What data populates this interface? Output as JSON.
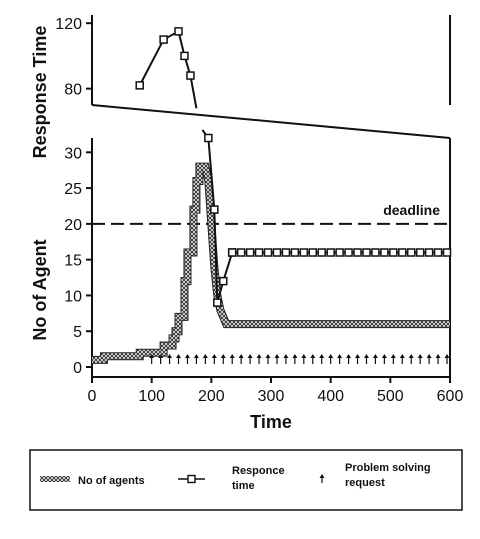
{
  "chart_data": {
    "type": "line",
    "title": "",
    "xlabel": "Time",
    "ylabel_top": "Response Time",
    "ylabel_bottom": "No of Agent",
    "xlim": [
      0,
      600
    ],
    "x_ticks": [
      0,
      100,
      200,
      300,
      400,
      500,
      600
    ],
    "top_panel": {
      "ylim": [
        70,
        125
      ],
      "y_ticks": [
        80,
        120
      ],
      "response_time_points": [
        [
          80,
          82
        ],
        [
          120,
          110
        ],
        [
          145,
          115
        ],
        [
          155,
          100
        ],
        [
          165,
          88
        ]
      ],
      "line_to": [
        175,
        68
      ]
    },
    "bottom_panel": {
      "ylim": [
        0,
        32
      ],
      "y_ticks": [
        0,
        5,
        10,
        15,
        20,
        25,
        30
      ],
      "deadline": {
        "label": "deadline",
        "value": 20
      },
      "no_of_agents": [
        [
          0,
          1
        ],
        [
          20,
          1
        ],
        [
          20,
          1.5
        ],
        [
          80,
          1.5
        ],
        [
          80,
          2
        ],
        [
          120,
          2
        ],
        [
          120,
          3
        ],
        [
          135,
          3
        ],
        [
          135,
          4
        ],
        [
          140,
          4
        ],
        [
          140,
          5
        ],
        [
          145,
          5
        ],
        [
          145,
          7
        ],
        [
          155,
          7
        ],
        [
          155,
          12
        ],
        [
          160,
          12
        ],
        [
          160,
          16
        ],
        [
          170,
          16
        ],
        [
          170,
          22
        ],
        [
          175,
          22
        ],
        [
          175,
          26
        ],
        [
          180,
          26
        ],
        [
          180,
          28
        ],
        [
          190,
          28
        ],
        [
          195,
          26
        ],
        [
          200,
          20
        ],
        [
          205,
          14
        ],
        [
          210,
          10
        ],
        [
          215,
          8
        ],
        [
          220,
          7
        ],
        [
          225,
          6
        ],
        [
          600,
          6
        ]
      ],
      "response_time_points": [
        [
          195,
          32
        ],
        [
          205,
          22
        ],
        [
          210,
          9
        ],
        [
          220,
          12
        ],
        [
          235,
          16
        ]
      ],
      "response_time_line": [
        [
          185,
          37
        ],
        [
          195,
          32
        ],
        [
          205,
          22
        ],
        [
          210,
          9
        ],
        [
          220,
          12
        ],
        [
          235,
          16
        ]
      ],
      "response_time_steady": {
        "x_start": 235,
        "x_end": 600,
        "step": 15,
        "value": 16
      },
      "problem_solving_requests": {
        "x_start": 100,
        "x_end": 595,
        "step": 15
      }
    },
    "legend": [
      {
        "marker": "hatched",
        "label": "No of agents"
      },
      {
        "marker": "square-line",
        "label": "Responce time"
      },
      {
        "marker": "arrow",
        "label": "Problem solving request"
      }
    ]
  },
  "labels": {
    "xlabel": "Time",
    "ylabel_top": "Response Time",
    "ylabel_bottom": "No of Agent",
    "deadline": "deadline",
    "legend_agents": "No of agents",
    "legend_resp_line1": "Responce",
    "legend_resp_line2": "time",
    "legend_psr_line1": "Problem solving",
    "legend_psr_line2": "request"
  }
}
